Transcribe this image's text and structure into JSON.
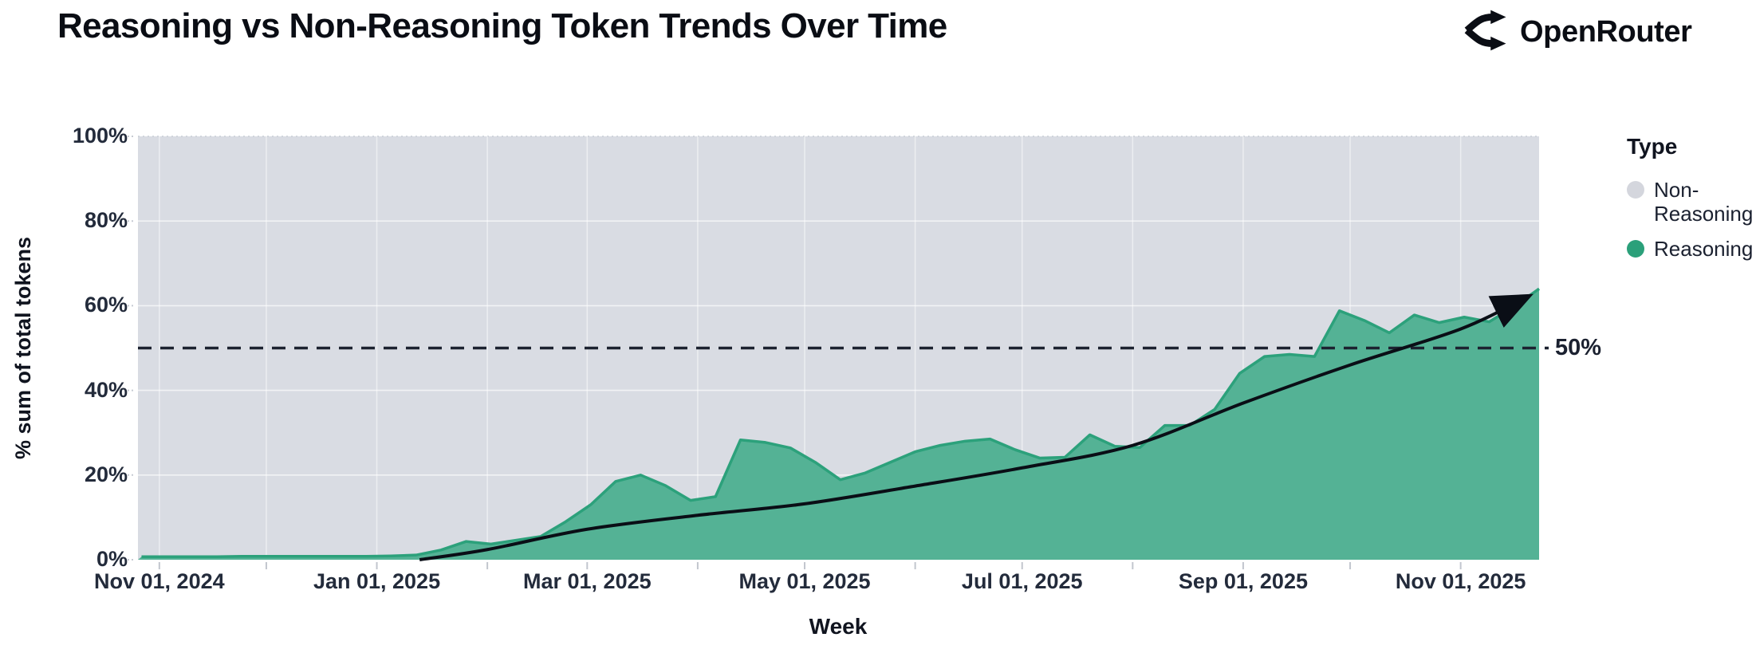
{
  "header": {
    "title": "Reasoning vs Non-Reasoning Token Trends Over Time",
    "brand": {
      "name": "OpenRouter"
    }
  },
  "legend": {
    "title": "Type",
    "items": [
      {
        "label": "Non-Reasoning",
        "color": "#D4D6DD"
      },
      {
        "label": "Reasoning",
        "color": "#2BA07A"
      }
    ]
  },
  "reference_line": {
    "value": 50,
    "label": "50%"
  },
  "axes": {
    "xlabel": "Week",
    "ylabel": "% sum of total tokens"
  },
  "colors": {
    "plot_background": "#D9DCE3",
    "reasoning_fill": "#54B295",
    "reasoning_stroke": "#2CA17B",
    "non_reasoning": "#D9DCE3",
    "trend_line": "#0a0e16",
    "dashed_line": "#1c2230",
    "text": "#232b3b"
  },
  "chart_data": {
    "type": "area",
    "stacking": "percent",
    "title": "Reasoning vs Non-Reasoning Token Trends Over Time",
    "xlabel": "Week",
    "ylabel": "% sum of total tokens",
    "ylim": [
      0,
      100
    ],
    "grid": true,
    "legend_position": "right",
    "x_range": [
      "2024-10-26",
      "2025-11-23"
    ],
    "y_tick_values": [
      0,
      20,
      40,
      60,
      80,
      100
    ],
    "y_tick_labels": [
      "0%",
      "20%",
      "40%",
      "60%",
      "80%",
      "100%"
    ],
    "x_ticks": [
      {
        "date": "2024-11-01",
        "label": "Nov 01, 2024"
      },
      {
        "date": "2025-01-01",
        "label": "Jan 01, 2025"
      },
      {
        "date": "2025-03-01",
        "label": "Mar 01, 2025"
      },
      {
        "date": "2025-05-01",
        "label": "May 01, 2025"
      },
      {
        "date": "2025-07-01",
        "label": "Jul 01, 2025"
      },
      {
        "date": "2025-09-01",
        "label": "Sep 01, 2025"
      },
      {
        "date": "2025-11-01",
        "label": "Nov 01, 2025"
      }
    ],
    "x_month_gridlines": [
      "2024-11-01",
      "2024-12-01",
      "2025-01-01",
      "2025-02-01",
      "2025-03-01",
      "2025-04-01",
      "2025-05-01",
      "2025-06-01",
      "2025-07-01",
      "2025-08-01",
      "2025-09-01",
      "2025-10-01",
      "2025-11-01"
    ],
    "series": [
      {
        "name": "Reasoning",
        "color": "#2CA17B",
        "fill": "#54B295",
        "weeks": [
          "2024-10-27",
          "2024-11-03",
          "2024-11-10",
          "2024-11-17",
          "2024-11-24",
          "2024-12-01",
          "2024-12-08",
          "2024-12-15",
          "2024-12-22",
          "2024-12-29",
          "2025-01-05",
          "2025-01-12",
          "2025-01-19",
          "2025-01-26",
          "2025-02-02",
          "2025-02-09",
          "2025-02-16",
          "2025-02-23",
          "2025-03-02",
          "2025-03-09",
          "2025-03-16",
          "2025-03-23",
          "2025-03-30",
          "2025-04-06",
          "2025-04-13",
          "2025-04-20",
          "2025-04-27",
          "2025-05-04",
          "2025-05-11",
          "2025-05-18",
          "2025-05-25",
          "2025-06-01",
          "2025-06-08",
          "2025-06-15",
          "2025-06-22",
          "2025-06-29",
          "2025-07-06",
          "2025-07-13",
          "2025-07-20",
          "2025-07-27",
          "2025-08-03",
          "2025-08-10",
          "2025-08-17",
          "2025-08-24",
          "2025-08-31",
          "2025-09-07",
          "2025-09-14",
          "2025-09-21",
          "2025-09-28",
          "2025-10-05",
          "2025-10-12",
          "2025-10-19",
          "2025-10-26",
          "2025-11-02",
          "2025-11-09",
          "2025-11-16",
          "2025-11-23"
        ],
        "values": [
          0.7,
          0.7,
          0.7,
          0.7,
          0.8,
          0.8,
          0.8,
          0.8,
          0.8,
          0.8,
          0.9,
          1.1,
          2.3,
          4.3,
          3.7,
          4.6,
          5.5,
          9.0,
          13.0,
          18.5,
          20.0,
          17.5,
          14.0,
          14.9,
          28.3,
          27.7,
          26.4,
          23.0,
          18.9,
          20.5,
          23.0,
          25.5,
          27.0,
          28.0,
          28.5,
          26.0,
          24.0,
          24.2,
          29.5,
          26.8,
          26.5,
          31.7,
          31.7,
          35.5,
          44.0,
          48.0,
          48.5,
          48.0,
          58.8,
          56.5,
          53.6,
          57.8,
          56.0,
          57.3,
          56.2,
          59.8,
          64.0
        ]
      },
      {
        "name": "Non-Reasoning",
        "color": "#D9DCE3",
        "role": "remainder-to-100-percent"
      }
    ],
    "trend_line": {
      "description": "black exponential trend arrow",
      "points": [
        {
          "date": "2025-01-13",
          "value": 0
        },
        {
          "date": "2025-02-01",
          "value": 2.4
        },
        {
          "date": "2025-03-01",
          "value": 7.2
        },
        {
          "date": "2025-04-01",
          "value": 10.5
        },
        {
          "date": "2025-05-01",
          "value": 13.2
        },
        {
          "date": "2025-06-01",
          "value": 17.4
        },
        {
          "date": "2025-07-01",
          "value": 21.7
        },
        {
          "date": "2025-08-01",
          "value": 27.0
        },
        {
          "date": "2025-09-01",
          "value": 37.0
        },
        {
          "date": "2025-10-01",
          "value": 46.0
        },
        {
          "date": "2025-11-01",
          "value": 54.5
        },
        {
          "date": "2025-11-19",
          "value": 61.8
        }
      ]
    },
    "reference_line": {
      "value": 50,
      "label": "50%"
    }
  }
}
